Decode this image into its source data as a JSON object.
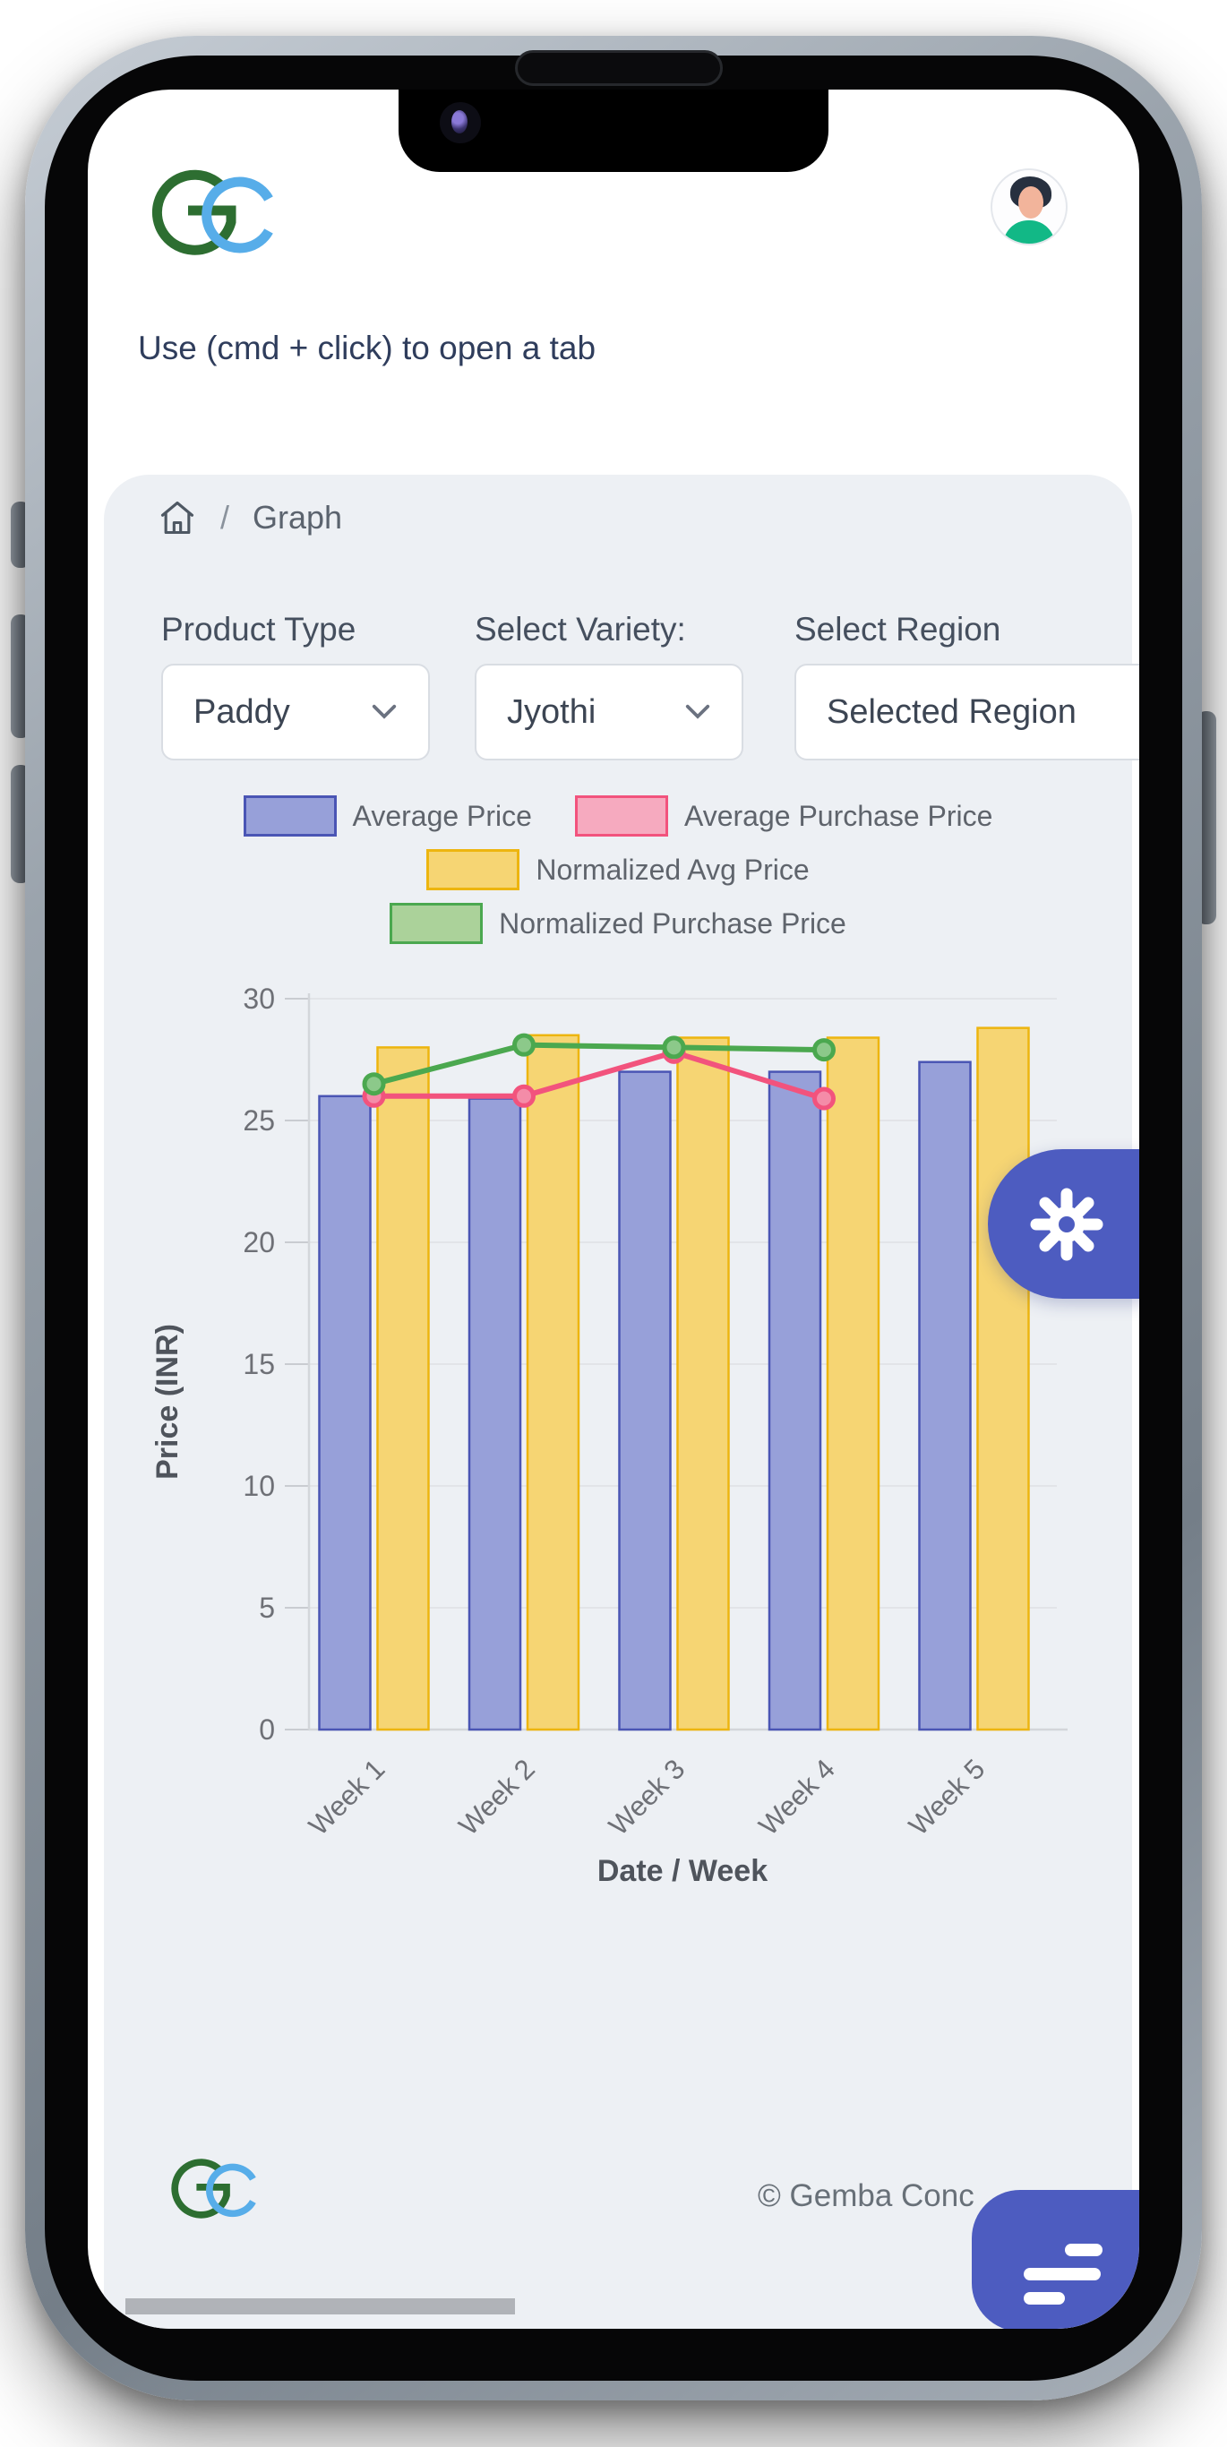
{
  "header": {
    "logo": "gemba-concepts-logo",
    "avatar": "user-avatar"
  },
  "notice": "Use (cmd + click) to open a tab",
  "breadcrumb": {
    "home_icon": "home-icon",
    "separator": "/",
    "current": "Graph"
  },
  "filters": [
    {
      "label": "Product Type",
      "value": "Paddy",
      "has_chevron": true
    },
    {
      "label": "Select Variety:",
      "value": "Jyothi",
      "has_chevron": true
    },
    {
      "label": "Select Region",
      "value": "Selected Region",
      "has_chevron": false
    }
  ],
  "chart_data": {
    "type": "bar+line",
    "categories": [
      "Week 1",
      "Week 2",
      "Week 3",
      "Week 4",
      "Week 5"
    ],
    "series": [
      {
        "name": "Average Price",
        "render": "bar",
        "values": [
          26,
          25.9,
          27,
          27,
          27.4
        ],
        "fill": "#97a0d9",
        "stroke": "#4a55b4",
        "legend_fill": "#97a0d9"
      },
      {
        "name": "Average Purchase Price",
        "render": "line",
        "values": [
          26,
          26,
          27.8,
          25.9,
          null
        ],
        "color": "#f2537d",
        "marker_fill": "#f48ca8",
        "legend_fill": "#f6aabf"
      },
      {
        "name": "Normalized Avg Price",
        "render": "bar",
        "values": [
          28,
          28.5,
          28.4,
          28.4,
          28.8
        ],
        "fill": "#f6d573",
        "stroke": "#edb50f",
        "legend_fill": "#f6d573"
      },
      {
        "name": "Normalized Purchase Price",
        "render": "line",
        "values": [
          26.5,
          28.1,
          28,
          27.9,
          null
        ],
        "color": "#4ba84f",
        "marker_fill": "#8cc98a",
        "legend_fill": "#abd29a"
      }
    ],
    "legend_rows": [
      [
        "Average Price",
        "Average Purchase Price"
      ],
      [
        "Normalized Avg Price"
      ],
      [
        "Normalized Purchase Price"
      ]
    ],
    "xlabel": "Date / Week",
    "ylabel": "Price (INR)",
    "ylim": [
      0,
      30
    ],
    "yticks": [
      0,
      5,
      10,
      15,
      20,
      25,
      30
    ],
    "grid": true,
    "legend_position": "top"
  },
  "fab": {
    "gear_icon": "gear-icon",
    "chat_icon": "chat-lines-icon",
    "accent_color": "#4d5cc0"
  },
  "footer": {
    "copyright": "© Gemba Conc"
  },
  "colors": {
    "card_bg": "#edf0f4",
    "accent": "#4d5cc0",
    "logo_green": "#2d6e31",
    "logo_blue": "#57ade9"
  }
}
